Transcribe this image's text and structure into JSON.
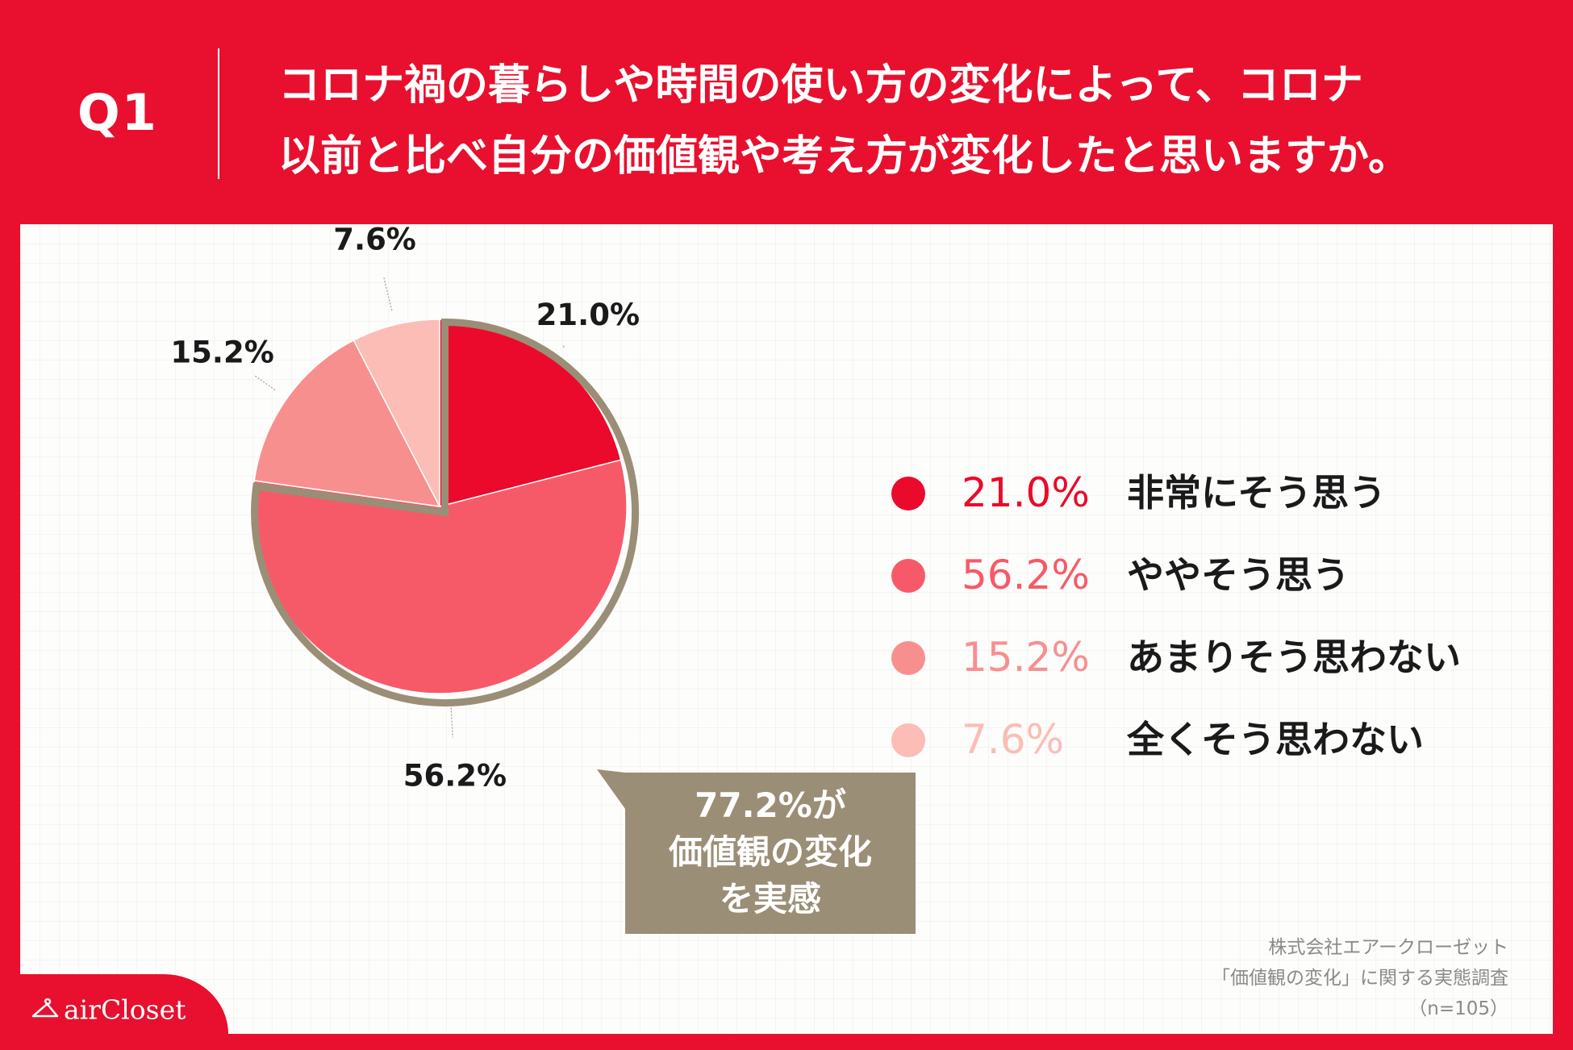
{
  "header": {
    "question_number": "Q1",
    "question_line1": "コロナ禍の暮らしや時間の使い方の変化によって、コロナ",
    "question_line2": "以前と比べ自分の価値観や考え方が変化したと思いますか。"
  },
  "chart_data": {
    "type": "pie",
    "title": "コロナ禍の暮らしや時間の使い方の変化によって、コロナ以前と比べ自分の価値観や考え方が変化したと思いますか。",
    "start_angle": "12 o'clock",
    "direction": "clockwise",
    "slices": [
      {
        "label": "非常にそう思う",
        "value": 21.0,
        "value_label": "21.0%",
        "color": "#eb0a2b"
      },
      {
        "label": "ややそう思う",
        "value": 56.2,
        "value_label": "56.2%",
        "color": "#f65a68"
      },
      {
        "label": "あまりそう思わない",
        "value": 15.2,
        "value_label": "15.2%",
        "color": "#f88f8f"
      },
      {
        "label": "全くそう思わない",
        "value": 7.6,
        "value_label": "7.6%",
        "color": "#fbbdb5"
      }
    ],
    "highlight": {
      "slices": [
        0,
        1
      ],
      "outline_color": "#9b8e76",
      "callout_line1": "77.2%が",
      "callout_line2": "価値観の変化",
      "callout_line3": "を実感"
    },
    "legend_position": "right"
  },
  "source": {
    "line1": "株式会社エアークローゼット",
    "line2": "「価値観の変化」に関する実態調査",
    "line3": "（n=105）"
  },
  "logo": {
    "text": "airCloset"
  }
}
